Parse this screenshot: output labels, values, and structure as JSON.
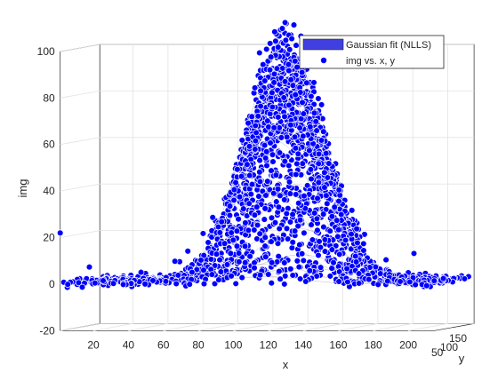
{
  "chart_data": {
    "type": "scatter",
    "title": "",
    "xlabel": "x",
    "ylabel": "y",
    "zlabel": "img",
    "xlim": [
      1,
      215
    ],
    "ylim": [
      1,
      160
    ],
    "zlim": [
      -20,
      100
    ],
    "x_ticks": [
      "20",
      "40",
      "60",
      "80",
      "100",
      "120",
      "140",
      "160",
      "180",
      "200"
    ],
    "y_ticks": [
      "50",
      "100",
      "150"
    ],
    "z_ticks": [
      "-20",
      "0",
      "20",
      "40",
      "60",
      "80",
      "100"
    ],
    "grid": true,
    "legend_position": "top-right",
    "legend": [
      {
        "label": "Gaussian fit (NLLS)",
        "kind": "surface",
        "color": "#4040e0"
      },
      {
        "label": "img vs. x, y",
        "kind": "marker",
        "color": "#0000ff"
      }
    ],
    "peak": {
      "x": 118,
      "y": 80,
      "z": 103
    },
    "baseline": 0,
    "notable_points": [
      {
        "x": 1,
        "y": 1,
        "z": 22
      },
      {
        "x": 15,
        "y": 20,
        "z": 7
      },
      {
        "x": 202,
        "y": 10,
        "z": 13
      }
    ]
  }
}
